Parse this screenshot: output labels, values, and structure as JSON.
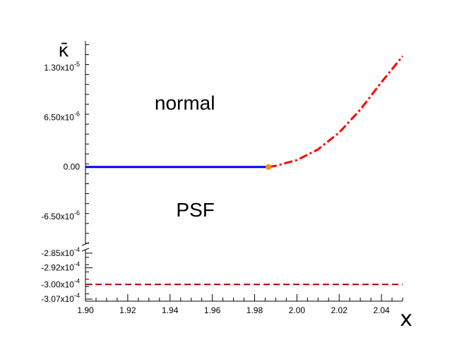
{
  "chart_data": {
    "type": "line",
    "title": "",
    "xlabel": "x",
    "ylabel": "κ̄",
    "xlim": [
      1.9,
      2.05
    ],
    "x_ticks": [
      1.9,
      1.92,
      1.94,
      1.96,
      1.98,
      2.0,
      2.02,
      2.04
    ],
    "x_tick_labels": [
      "1.90",
      "1.92",
      "1.94",
      "1.96",
      "1.98",
      "2.00",
      "2.02",
      "2.04"
    ],
    "upper_panel": {
      "ylim": [
        -1e-05,
        1.65e-05
      ],
      "y_ticks": [
        -6.5e-06,
        0,
        6.5e-06,
        1.3e-05
      ],
      "y_tick_labels": [
        {
          "mantissa": "-6.50x10",
          "exp": "-6"
        },
        {
          "mantissa": "0.00",
          "exp": ""
        },
        {
          "mantissa": "6.50x10",
          "exp": "-6"
        },
        {
          "mantissa": "1.30x10",
          "exp": "-5"
        }
      ]
    },
    "lower_panel": {
      "ylim": [
        -0.000308,
        -0.000284
      ],
      "y_ticks": [
        -0.000285,
        -0.000292,
        -0.0003,
        -0.000307
      ],
      "y_tick_labels": [
        {
          "mantissa": "-2.85x10",
          "exp": "-4"
        },
        {
          "mantissa": "-2.92x10",
          "exp": "-4"
        },
        {
          "mantissa": "-3.00x10",
          "exp": "-4"
        },
        {
          "mantissa": "-3.07x10",
          "exp": "-4"
        }
      ]
    },
    "axis_break": true,
    "series": [
      {
        "color": "#0000ff",
        "style": "solid",
        "x": [
          1.9,
          1.9865
        ],
        "y": [
          0,
          0
        ]
      },
      {
        "color": "#ff0000",
        "style": "dashdot",
        "x": [
          1.9865,
          1.99,
          2.0,
          2.01,
          2.02,
          2.03,
          2.04,
          2.05
        ],
        "y": [
          0,
          1.5e-07,
          9e-07,
          2.3e-06,
          4.5e-06,
          7.5e-06,
          1.11e-05,
          1.45e-05
        ]
      },
      {
        "color": "#aa0000",
        "style": "dashed",
        "x": [
          1.9,
          2.05
        ],
        "y": [
          -0.0003,
          -0.0003
        ]
      }
    ],
    "points": [
      {
        "x": 1.9865,
        "y": 0,
        "color": "#ff8c00"
      }
    ],
    "annotations": [
      {
        "text": "normal",
        "x": 1.947,
        "y": 7.5e-06
      },
      {
        "text": "PSF",
        "x": 1.952,
        "y": -6.5e-06
      }
    ],
    "grid": false
  }
}
